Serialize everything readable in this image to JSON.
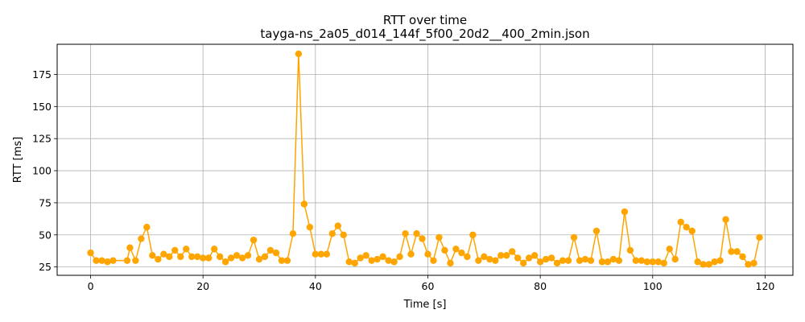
{
  "chart_data": {
    "type": "line",
    "title": "RTT over time",
    "subtitle": "tayga-ns_2a05_d014_144f_5f00_20d2__400_2min.json",
    "xlabel": "Time [s]",
    "ylabel": "RTT [ms]",
    "xlim": [
      -5.95,
      124.95
    ],
    "ylim": [
      18.5,
      198.5
    ],
    "xticks": [
      0,
      20,
      40,
      60,
      80,
      100,
      120
    ],
    "yticks": [
      25,
      50,
      75,
      100,
      125,
      150,
      175
    ],
    "grid": true,
    "series": [
      {
        "color": "#ffa500",
        "marker": "circle",
        "x": [
          0,
          1,
          2,
          3,
          4,
          6.5,
          7,
          8,
          9,
          10,
          11,
          12,
          13,
          14,
          15,
          16,
          17,
          18,
          19,
          20,
          21,
          22,
          23,
          24,
          25,
          26,
          27,
          28,
          29,
          30,
          31,
          32,
          33,
          34,
          35,
          36,
          37,
          38,
          39,
          40,
          41,
          42,
          43,
          44,
          45,
          46,
          47,
          48,
          49,
          50,
          51,
          52,
          53,
          54,
          55,
          56,
          57,
          58,
          59,
          60,
          61,
          62,
          63,
          64,
          65,
          66,
          67,
          68,
          69,
          70,
          71,
          72,
          73,
          74,
          75,
          76,
          77,
          78,
          79,
          80,
          81,
          82,
          83,
          84,
          85,
          86,
          87,
          88,
          89,
          90,
          91,
          92,
          93,
          94,
          95,
          96,
          97,
          98,
          99,
          100,
          101,
          102,
          103,
          104,
          105,
          106,
          107,
          108,
          109,
          110,
          111,
          112,
          113,
          114,
          115,
          116,
          117,
          118,
          119
        ],
        "y": [
          36,
          30,
          30,
          29,
          30,
          30,
          40,
          30,
          47,
          56,
          34,
          31,
          35,
          33,
          38,
          33,
          39,
          33,
          33,
          32,
          32,
          39,
          33,
          29,
          32,
          34,
          32,
          34,
          46,
          31,
          33,
          38,
          36,
          30,
          30,
          51,
          191,
          74,
          56,
          35,
          35,
          35,
          51,
          57,
          50,
          29,
          28,
          32,
          34,
          30,
          31,
          33,
          30,
          29,
          33,
          51,
          35,
          51,
          47,
          35,
          30,
          48,
          38,
          28,
          39,
          36,
          33,
          50,
          30,
          33,
          31,
          30,
          34,
          34,
          37,
          32,
          28,
          32,
          34,
          29,
          31,
          32,
          28,
          30,
          30,
          48,
          30,
          31,
          30,
          53,
          29,
          29,
          31,
          30,
          68,
          38,
          30,
          30,
          29,
          29,
          29,
          28,
          39,
          31,
          60,
          56,
          53,
          29,
          27,
          27,
          29,
          30,
          62,
          37,
          37,
          33,
          27,
          28,
          48
        ]
      }
    ]
  }
}
